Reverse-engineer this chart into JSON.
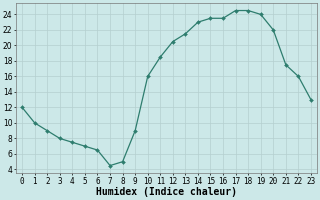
{
  "x": [
    0,
    1,
    2,
    3,
    4,
    5,
    6,
    7,
    8,
    9,
    10,
    11,
    12,
    13,
    14,
    15,
    16,
    17,
    18,
    19,
    20,
    21,
    22,
    23
  ],
  "y": [
    12,
    10,
    9,
    8,
    7.5,
    7,
    6.5,
    4.5,
    5,
    9,
    16,
    18.5,
    20.5,
    21.5,
    23,
    23.5,
    23.5,
    24.5,
    24.5,
    24,
    22,
    17.5,
    16,
    13
  ],
  "line_color": "#2e7d6e",
  "marker": "D",
  "marker_size": 2.0,
  "line_width": 0.9,
  "bg_color": "#cce8e8",
  "grid_color": "#b5cfcf",
  "xlabel": "Humidex (Indice chaleur)",
  "xlabel_fontsize": 7,
  "yticks": [
    4,
    6,
    8,
    10,
    12,
    14,
    16,
    18,
    20,
    22,
    24
  ],
  "xtick_labels": [
    "0",
    "1",
    "2",
    "3",
    "4",
    "5",
    "6",
    "7",
    "8",
    "9",
    "10",
    "11",
    "12",
    "13",
    "14",
    "15",
    "16",
    "17",
    "18",
    "19",
    "20",
    "21",
    "22",
    "23"
  ],
  "ylim": [
    3.5,
    25.5
  ],
  "xlim": [
    -0.5,
    23.5
  ],
  "tick_fontsize": 5.5
}
